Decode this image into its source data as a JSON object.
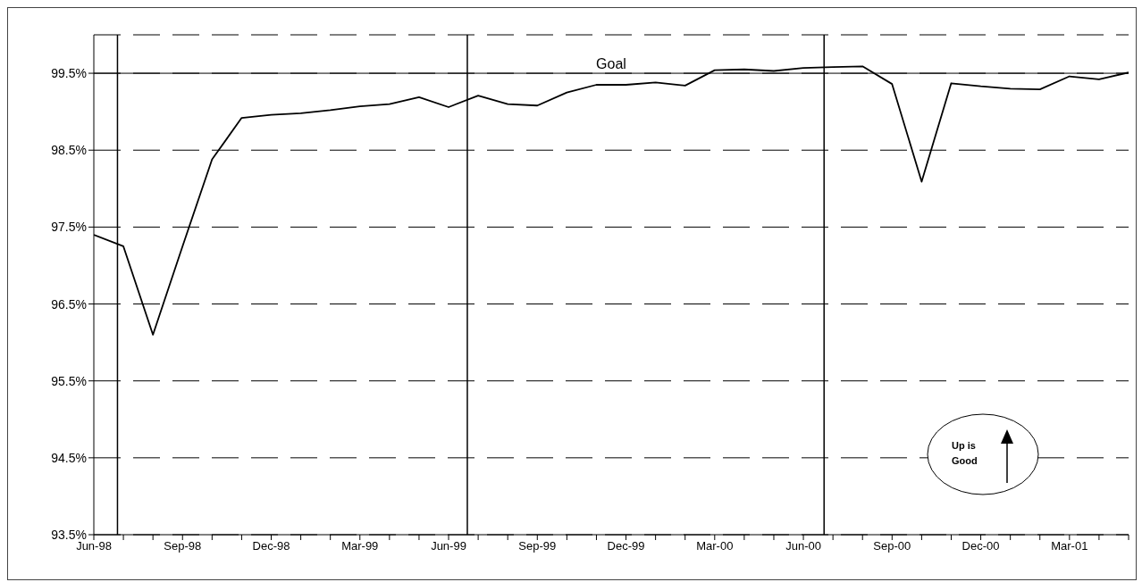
{
  "chart_data": {
    "type": "line",
    "x": [
      "1998-06",
      "1998-07",
      "1998-08",
      "1998-09",
      "1998-10",
      "1998-11",
      "1998-12",
      "1999-01",
      "1999-02",
      "1999-03",
      "1999-04",
      "1999-05",
      "1999-06",
      "1999-07",
      "1999-08",
      "1999-09",
      "1999-10",
      "1999-11",
      "1999-12",
      "2000-01",
      "2000-02",
      "2000-03",
      "2000-04",
      "2000-05",
      "2000-06",
      "2000-07",
      "2000-08",
      "2000-09",
      "2000-10",
      "2000-11",
      "2000-12",
      "2001-01",
      "2001-02",
      "2001-03",
      "2001-04",
      "2001-05"
    ],
    "series": [
      {
        "color": "#000000",
        "values": [
          97.4,
          97.25,
          96.1,
          97.25,
          98.38,
          98.92,
          98.96,
          98.98,
          99.02,
          99.07,
          99.1,
          99.19,
          99.06,
          99.21,
          99.1,
          99.08,
          99.25,
          99.35,
          99.35,
          99.38,
          99.34,
          99.54,
          99.55,
          99.53,
          99.57,
          99.58,
          99.59,
          99.36,
          98.09,
          99.37,
          99.33,
          99.3,
          99.29,
          99.46,
          99.42,
          99.51
        ]
      }
    ],
    "xlim": [
      "1998-06",
      "2001-05"
    ],
    "xticks": [
      {
        "value": "1998-06",
        "label": "Jun-98"
      },
      {
        "value": "1998-07",
        "label": null
      },
      {
        "value": "1998-08",
        "label": null
      },
      {
        "value": "1998-09",
        "label": "Sep-98"
      },
      {
        "value": "1998-10",
        "label": null
      },
      {
        "value": "1998-11",
        "label": null
      },
      {
        "value": "1998-12",
        "label": "Dec-98"
      },
      {
        "value": "1999-01",
        "label": null
      },
      {
        "value": "1999-02",
        "label": null
      },
      {
        "value": "1999-03",
        "label": "Mar-99"
      },
      {
        "value": "1999-04",
        "label": null
      },
      {
        "value": "1999-05",
        "label": null
      },
      {
        "value": "1999-06",
        "label": "Jun-99"
      },
      {
        "value": "1999-07",
        "label": null
      },
      {
        "value": "1999-08",
        "label": null
      },
      {
        "value": "1999-09",
        "label": "Sep-99"
      },
      {
        "value": "1999-10",
        "label": null
      },
      {
        "value": "1999-11",
        "label": null
      },
      {
        "value": "1999-12",
        "label": "Dec-99"
      },
      {
        "value": "2000-01",
        "label": null
      },
      {
        "value": "2000-02",
        "label": null
      },
      {
        "value": "2000-03",
        "label": "Mar-00"
      },
      {
        "value": "2000-04",
        "label": null
      },
      {
        "value": "2000-05",
        "label": null
      },
      {
        "value": "2000-06",
        "label": "Jun-00"
      },
      {
        "value": "2000-07",
        "label": null
      },
      {
        "value": "2000-08",
        "label": null
      },
      {
        "value": "2000-09",
        "label": "Sep-00"
      },
      {
        "value": "2000-10",
        "label": null
      },
      {
        "value": "2000-11",
        "label": null
      },
      {
        "value": "2000-12",
        "label": "Dec-00"
      },
      {
        "value": "2001-01",
        "label": null
      },
      {
        "value": "2001-02",
        "label": null
      },
      {
        "value": "2001-03",
        "label": "Mar-01"
      },
      {
        "value": "2001-04",
        "label": null
      },
      {
        "value": "2001-05",
        "label": null
      }
    ],
    "ylim": [
      93.5,
      100
    ],
    "yticks": [
      {
        "value": 93.5,
        "label": "93.5%"
      },
      {
        "value": 94.5,
        "label": "94.5%"
      },
      {
        "value": 95.5,
        "label": "95.5%"
      },
      {
        "value": 96.5,
        "label": "96.5%"
      },
      {
        "value": 97.5,
        "label": "97.5%"
      },
      {
        "value": 98.5,
        "label": "98.5%"
      },
      {
        "value": 99.5,
        "label": "99.5%"
      }
    ],
    "grid": "y",
    "marker": "none",
    "line_style": "solid",
    "legend": false,
    "ref_lines": [
      {
        "axis": "y",
        "value": 99.5,
        "label": "Goal"
      },
      {
        "axis": "x",
        "value": "1998-06-25"
      },
      {
        "axis": "x",
        "value": "1999-06-20"
      },
      {
        "axis": "x",
        "value": "2000-06-22"
      }
    ],
    "annotations": [
      "Up is Good"
    ]
  }
}
